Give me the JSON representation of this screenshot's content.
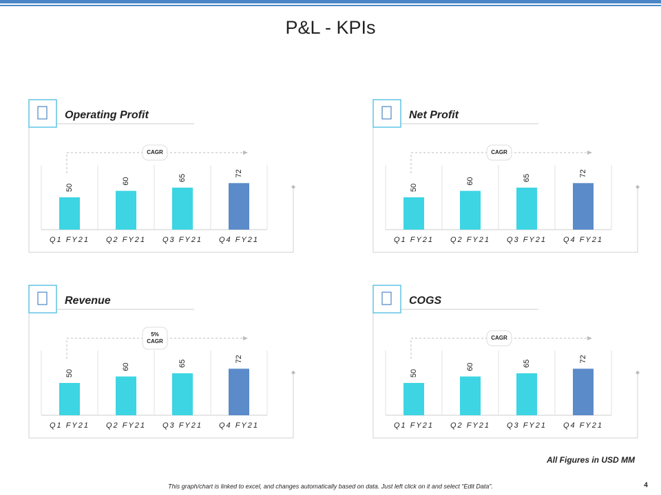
{
  "title": "P&L - KPIs",
  "units_note": "All Figures in USD MM",
  "footer": "This graph/chart is linked to excel, and changes automatically based on data. Just left click on it and select “Edit Data”.",
  "page_number": "4",
  "chart_data": [
    {
      "type": "bar",
      "title": "Operating Profit",
      "categories": [
        "Q1 FY21",
        "Q2 FY21",
        "Q3 FY21",
        "Q4 FY21"
      ],
      "values": [
        50,
        60,
        65,
        72
      ],
      "colors": [
        "#3dd5e3",
        "#3dd5e3",
        "#3dd5e3",
        "#5b8bc9"
      ],
      "ylim": [
        0,
        100
      ],
      "annotation": [
        "CAGR"
      ]
    },
    {
      "type": "bar",
      "title": "Net Profit",
      "categories": [
        "Q1 FY21",
        "Q2 FY21",
        "Q3 FY21",
        "Q4 FY21"
      ],
      "values": [
        50,
        60,
        65,
        72
      ],
      "colors": [
        "#3dd5e3",
        "#3dd5e3",
        "#3dd5e3",
        "#5b8bc9"
      ],
      "ylim": [
        0,
        100
      ],
      "annotation": [
        "CAGR"
      ]
    },
    {
      "type": "bar",
      "title": "Revenue",
      "categories": [
        "Q1 FY21",
        "Q2 FY21",
        "Q3 FY21",
        "Q4 FY21"
      ],
      "values": [
        50,
        60,
        65,
        72
      ],
      "colors": [
        "#3dd5e3",
        "#3dd5e3",
        "#3dd5e3",
        "#5b8bc9"
      ],
      "ylim": [
        0,
        100
      ],
      "annotation": [
        "5%",
        "CAGR"
      ]
    },
    {
      "type": "bar",
      "title": "COGS",
      "categories": [
        "Q1 FY21",
        "Q2 FY21",
        "Q3 FY21",
        "Q4 FY21"
      ],
      "values": [
        50,
        60,
        65,
        72
      ],
      "colors": [
        "#3dd5e3",
        "#3dd5e3",
        "#3dd5e3",
        "#5b8bc9"
      ],
      "ylim": [
        0,
        100
      ],
      "annotation": [
        "CAGR"
      ]
    }
  ]
}
